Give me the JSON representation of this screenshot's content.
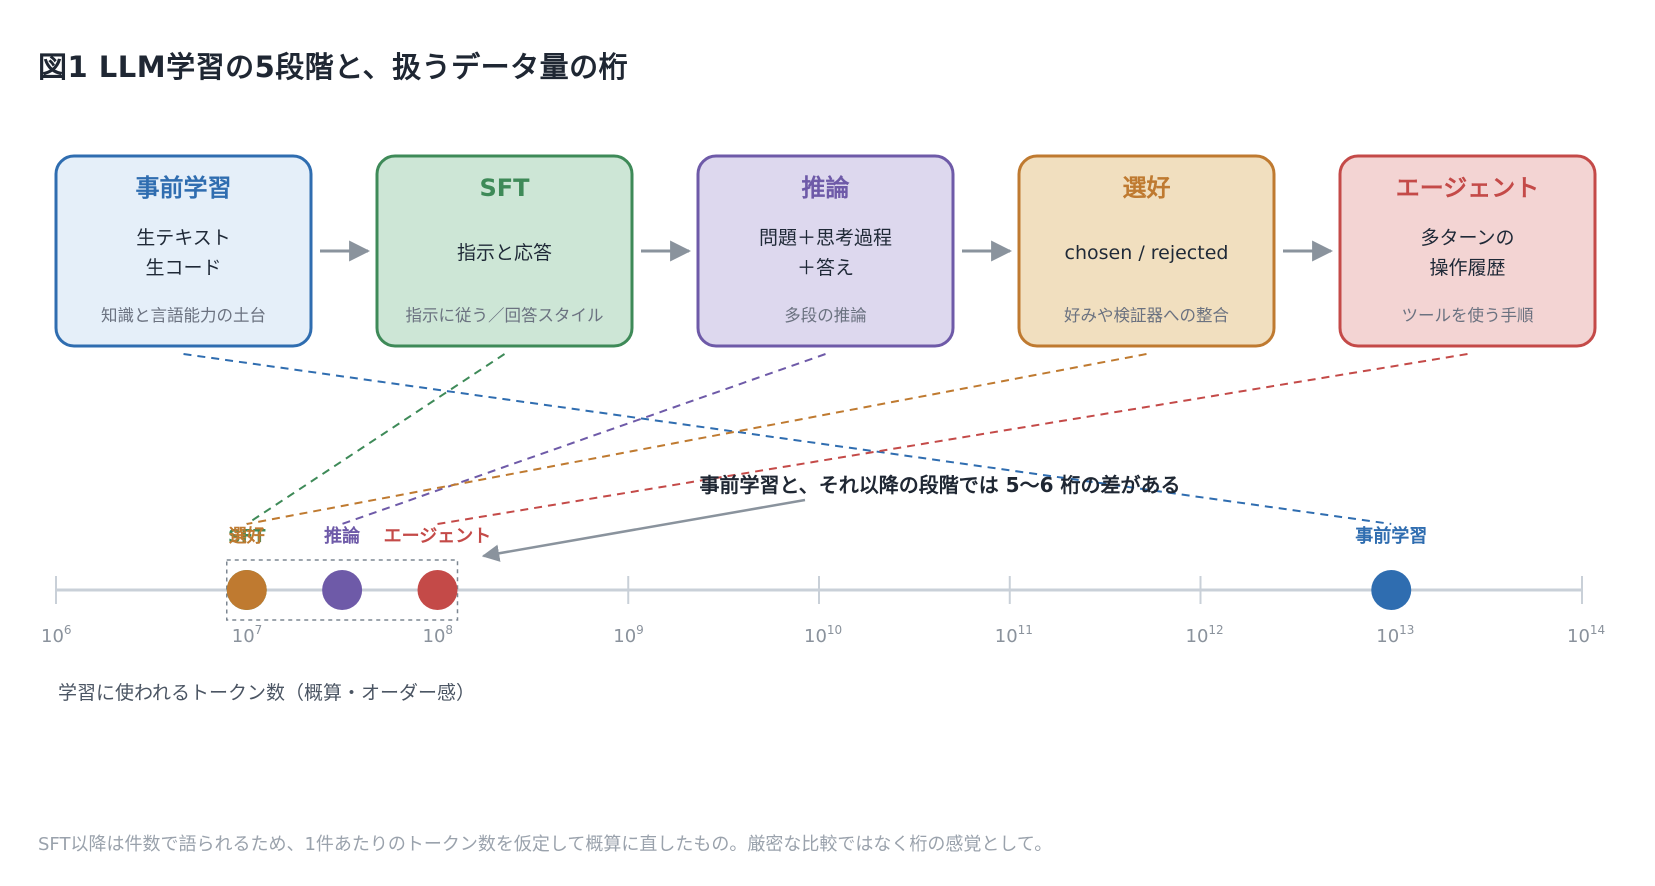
{
  "title": "図1  LLM学習の5段階と、扱うデータ量の桁",
  "stages": [
    {
      "id": "pretrain",
      "title": "事前学習",
      "body": [
        "生テキスト",
        "生コード"
      ],
      "note": "知識と言語能力の土台",
      "color": "#2f6db0",
      "fill": "#e5eff9"
    },
    {
      "id": "sft",
      "title": "SFT",
      "body": [
        "指示と応答"
      ],
      "note": "指示に従う／回答スタイル",
      "color": "#3e8a58",
      "fill": "#cde6d6"
    },
    {
      "id": "reasoning",
      "title": "推論",
      "body": [
        "問題＋思考過程",
        "＋答え"
      ],
      "note": "多段の推論",
      "color": "#6e5aa8",
      "fill": "#ddd8ee"
    },
    {
      "id": "preference",
      "title": "選好",
      "body": [
        "chosen / rejected"
      ],
      "note": "好みや検証器への整合",
      "color": "#bf7a30",
      "fill": "#f1dfbf"
    },
    {
      "id": "agent",
      "title": "エージェント",
      "body": [
        "多ターンの",
        "操作履歴"
      ],
      "note": "ツールを使う手順",
      "color": "#c44a48",
      "fill": "#f3d4d3"
    }
  ],
  "chart_data": {
    "type": "scatter",
    "x_scale": "log",
    "xlim_exponent": [
      6,
      14
    ],
    "xlabel": "学習に使われるトークン数（概算・オーダー感）",
    "tick_base": "10",
    "tick_exponents": [
      "6",
      "7",
      "8",
      "9",
      "10",
      "11",
      "12",
      "13",
      "14"
    ],
    "points": [
      {
        "stage": "pretrain",
        "label": "事前学習",
        "log10_tokens": 13.0
      },
      {
        "stage": "sft",
        "label": "SFT",
        "log10_tokens": 7.0
      },
      {
        "stage": "reasoning",
        "label": "推論",
        "log10_tokens": 7.5
      },
      {
        "stage": "preference",
        "label": "選好",
        "log10_tokens": 7.0
      },
      {
        "stage": "agent",
        "label": "エージェント",
        "log10_tokens": 8.0
      }
    ],
    "annotation": "事前学習と、それ以降の段階では 5〜6 桁の差がある"
  },
  "footnote": "SFT以降は件数で語られるため、1件あたりのトークン数を仮定して概算に直したもの。厳密な比較ではなく桁の感覚として。"
}
